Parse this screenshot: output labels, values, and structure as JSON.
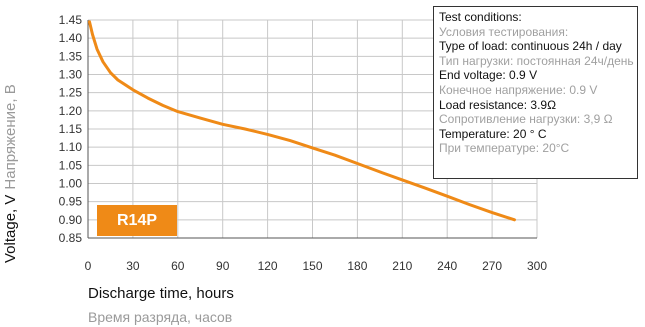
{
  "chart_data": {
    "type": "line",
    "xlabel": "Discharge time, hours",
    "xlabel_ru": "Время разряда, часов",
    "ylabel": "Voltage, V",
    "ylabel_ru": "Напряжение, В",
    "xlim": [
      0,
      300
    ],
    "ylim": [
      0.85,
      1.45
    ],
    "x_ticks": [
      "0",
      "30",
      "60",
      "90",
      "120",
      "150",
      "180",
      "210",
      "240",
      "270",
      "300"
    ],
    "y_ticks": [
      "0.85",
      "0.90",
      "0.95",
      "1.00",
      "1.05",
      "1.10",
      "1.15",
      "1.20",
      "1.25",
      "1.30",
      "1.35",
      "1.40",
      "1.45"
    ],
    "series": [
      {
        "color": "#ef8a17",
        "x": [
          1,
          3,
          6,
          10,
          15,
          20,
          30,
          40,
          50,
          60,
          75,
          90,
          105,
          120,
          135,
          150,
          165,
          180,
          195,
          210,
          225,
          240,
          255,
          270,
          285
        ],
        "y": [
          1.445,
          1.41,
          1.37,
          1.335,
          1.305,
          1.285,
          1.258,
          1.235,
          1.215,
          1.198,
          1.18,
          1.163,
          1.15,
          1.135,
          1.118,
          1.098,
          1.078,
          1.055,
          1.032,
          1.01,
          0.988,
          0.965,
          0.942,
          0.92,
          0.9
        ]
      }
    ]
  },
  "badge": {
    "label": "R14P"
  },
  "conditions": [
    {
      "en": "Test conditions:",
      "ru": "Условия тестирования:"
    },
    {
      "en": "Type of load: continuous 24h / day",
      "ru": "Тип нагрузки: постоянная 24ч/день"
    },
    {
      "en": "End voltage: 0.9 V",
      "ru": "Конечное напряжение: 0.9 V"
    },
    {
      "en": "Load resistance: 3.9Ω",
      "ru": "Сопротивление нагрузки: 3,9 Ω"
    },
    {
      "en": "Temperature: 20 ° C",
      "ru": "При температуре: 20°С"
    }
  ],
  "colors": {
    "line": "#ef8a17",
    "badge": "#ef8a17",
    "grid": "#c8c8c8",
    "axis": "#555555"
  }
}
